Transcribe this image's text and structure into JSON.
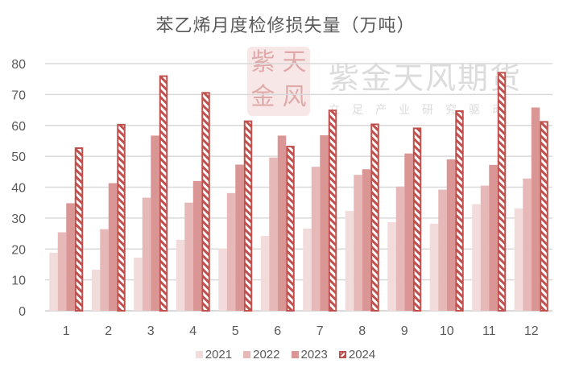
{
  "chart_data": {
    "type": "bar",
    "title": "苯乙烯月度检修损失量（万吨）",
    "xlabel": "",
    "ylabel": "",
    "ylim": [
      0,
      80
    ],
    "yticks": [
      0,
      10,
      20,
      30,
      40,
      50,
      60,
      70,
      80
    ],
    "grid": true,
    "legend_position": "bottom",
    "categories": [
      "1",
      "2",
      "3",
      "4",
      "5",
      "6",
      "7",
      "8",
      "9",
      "10",
      "11",
      "12"
    ],
    "series": [
      {
        "name": "2021",
        "color": "#f2dcdb",
        "values": [
          18.8,
          13.3,
          17.2,
          23.0,
          20.2,
          24.2,
          26.6,
          32.3,
          28.7,
          28.2,
          34.5,
          33.1
        ]
      },
      {
        "name": "2022",
        "color": "#e6b8b7",
        "values": [
          25.4,
          26.4,
          36.6,
          35.0,
          38.1,
          49.6,
          46.6,
          44.0,
          40.2,
          39.2,
          40.5,
          42.8
        ]
      },
      {
        "name": "2023",
        "color": "#da9694",
        "values": [
          34.8,
          41.3,
          56.7,
          42.0,
          47.3,
          56.7,
          56.8,
          45.8,
          50.9,
          49.0,
          47.2,
          65.8
        ]
      },
      {
        "name": "2024",
        "color": "#c0504d",
        "pattern": "diagonal-stripe",
        "values": [
          52.9,
          60.5,
          76.2,
          70.8,
          61.6,
          53.4,
          65.1,
          60.6,
          59.3,
          64.9,
          77.3,
          61.4
        ]
      }
    ]
  },
  "watermark": {
    "company": "紫金天风期货",
    "slogan": "立足产业研究驱动",
    "seal_chars": [
      "紫",
      "天",
      "金",
      "风"
    ]
  }
}
